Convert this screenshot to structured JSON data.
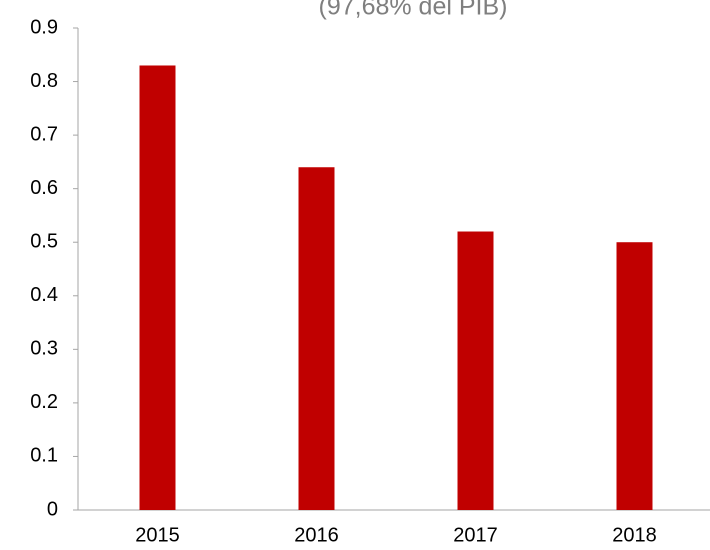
{
  "chart_data": {
    "type": "bar",
    "title": "(97,68% del PIB)",
    "categories": [
      "2015",
      "2016",
      "2017",
      "2018"
    ],
    "values": [
      0.83,
      0.64,
      0.52,
      0.5
    ],
    "color": "#c00000",
    "ylim": [
      0,
      0.9
    ],
    "yticks": [
      0,
      0.1,
      0.2,
      0.3,
      0.4,
      0.5,
      0.6,
      0.7,
      0.8,
      0.9
    ],
    "grid": false
  }
}
